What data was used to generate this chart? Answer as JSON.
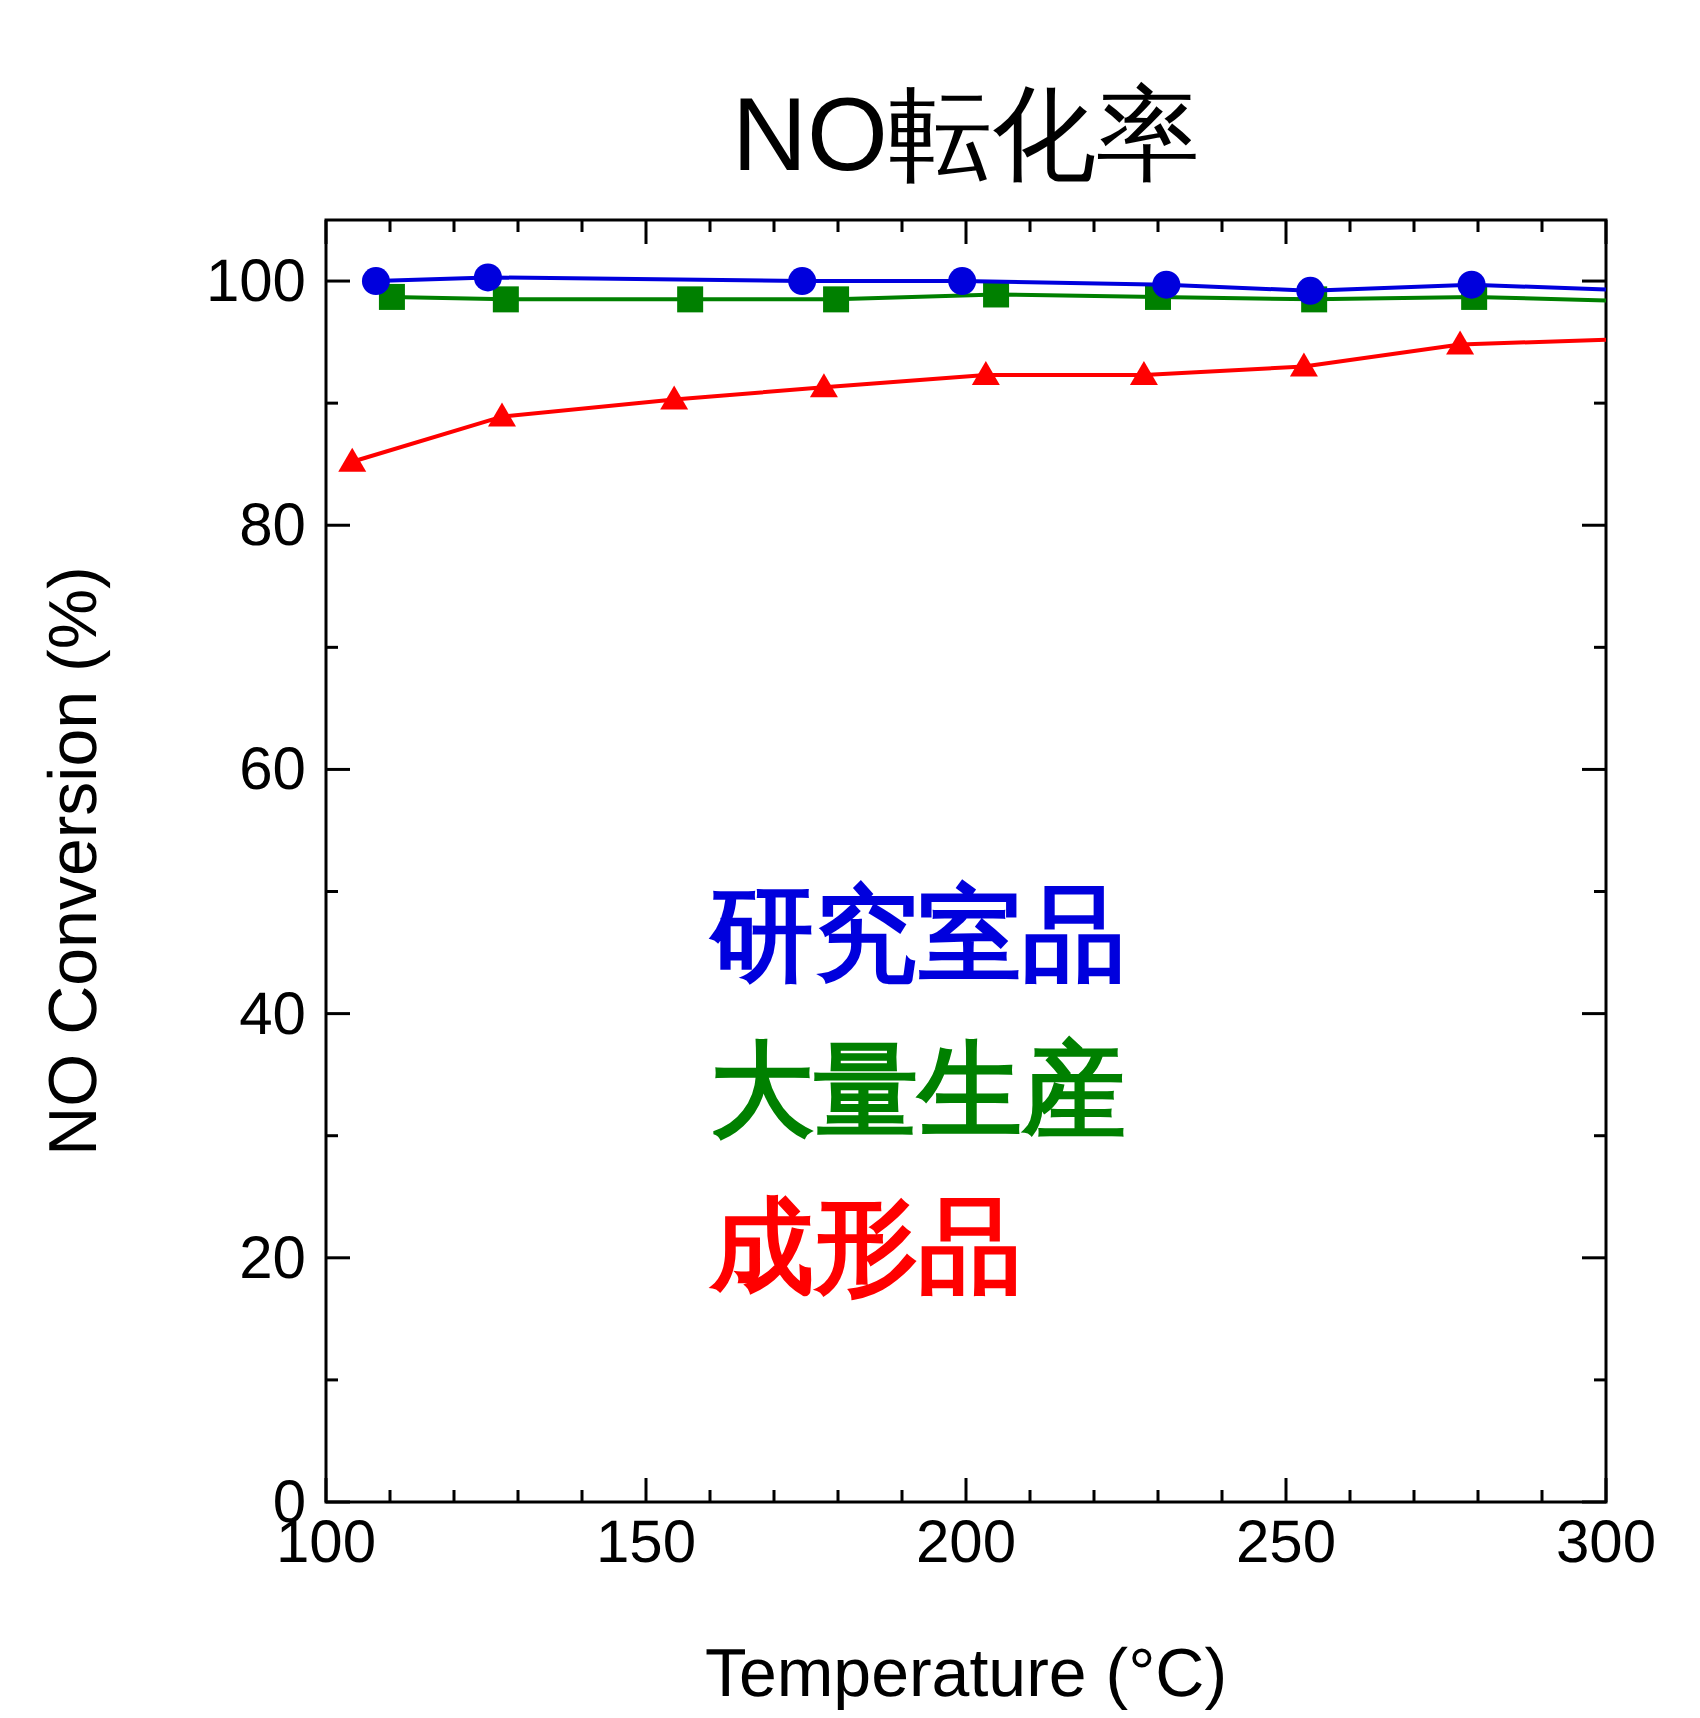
{
  "chart_data": {
    "type": "line",
    "title": "NO転化率",
    "xlabel": "Temperature (°C)",
    "ylabel": "NO Conversion (%)",
    "xlim": [
      100,
      300
    ],
    "xticks": [
      100,
      150,
      200,
      250,
      300
    ],
    "ylim": [
      0,
      105
    ],
    "yticks": [
      0,
      20,
      40,
      60,
      80,
      100
    ],
    "grid": false,
    "legend": "center",
    "series": [
      {
        "name": "研究室品",
        "color": "#0000dd",
        "marker": "circle",
        "x": [
          107.8,
          125.3,
          174.4,
          199.4,
          231.3,
          253.8,
          279,
          300
        ],
        "values": [
          100,
          100.3,
          100,
          100,
          99.7,
          99.2,
          99.7,
          99.3
        ]
      },
      {
        "name": "大量生産",
        "color": "#008000",
        "marker": "square",
        "x": [
          110.3,
          128.1,
          156.9,
          179.7,
          204.7,
          230,
          254.4,
          279.4,
          300
        ],
        "values": [
          98.7,
          98.5,
          98.5,
          98.5,
          98.9,
          98.7,
          98.5,
          98.7,
          98.4
        ]
      },
      {
        "name": "成形品",
        "color": "#ff0000",
        "marker": "triangle",
        "x": [
          104.1,
          127.5,
          154.4,
          177.8,
          203.1,
          227.8,
          252.8,
          277.2,
          300
        ],
        "values": [
          85.2,
          88.9,
          90.3,
          91.3,
          92.3,
          92.3,
          93.0,
          94.8,
          95.2
        ]
      }
    ]
  }
}
